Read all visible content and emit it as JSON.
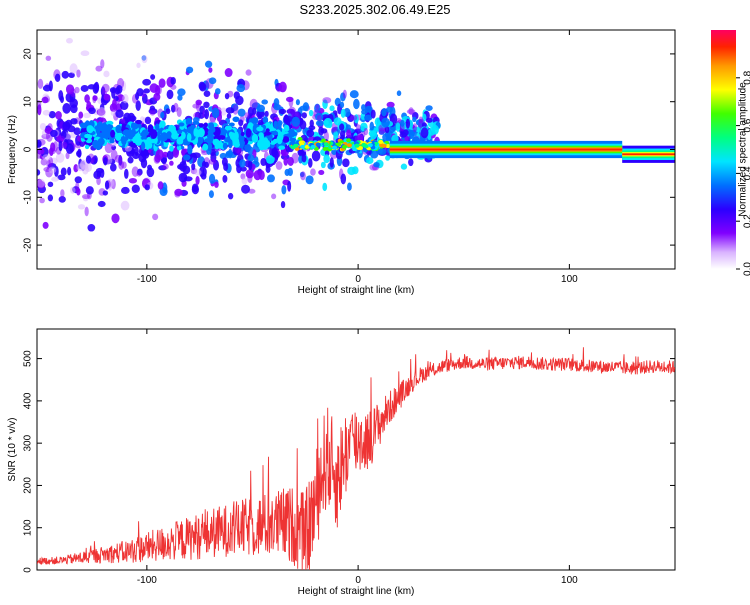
{
  "title": "S233.2025.302.06.49.E25",
  "chart_data": [
    {
      "type": "heatmap",
      "xlabel": "Height of straight line (km)",
      "ylabel": "Frequency (Hz)",
      "xlim": [
        -152,
        150
      ],
      "ylim": [
        -25,
        25
      ],
      "xticks": [
        -100,
        0,
        100
      ],
      "xtick_labels": [
        "-100",
        "0",
        "100"
      ],
      "yticks": [
        -20,
        -10,
        0,
        10,
        20
      ],
      "ytick_labels": [
        "-20",
        "-10",
        "0",
        "10",
        "20"
      ],
      "colorbar": {
        "label": "Normalized spectral amplitude",
        "range": [
          0,
          1
        ],
        "ticks": [
          0.0,
          0.2,
          0.4,
          0.6,
          0.8
        ],
        "tick_labels": [
          "0.0",
          "0.2",
          "0.4",
          "0.6",
          "0.8"
        ],
        "colormap": "rainbow"
      },
      "features": [
        {
          "x_range": [
            -152,
            -30
          ],
          "center_freq": 3,
          "spread_hz": 8,
          "amplitude": 0.2,
          "note": "broad noisy scatter"
        },
        {
          "x_range": [
            -30,
            15
          ],
          "center_freq": 1,
          "spread_hz": 2,
          "amplitude": 0.45,
          "note": "narrowing signal"
        },
        {
          "x_range": [
            15,
            125
          ],
          "center_freq": 0,
          "spread_hz": 1,
          "amplitude": 0.9,
          "note": "strong narrow line"
        },
        {
          "x_range": [
            125,
            150
          ],
          "center_freq": -1,
          "spread_hz": 1,
          "amplitude": 0.8,
          "note": "slight frequency drop"
        }
      ]
    },
    {
      "type": "line",
      "xlabel": "Height of straight line (km)",
      "ylabel": "SNR (10 * v/v)",
      "xlim": [
        -152,
        150
      ],
      "ylim": [
        0,
        570
      ],
      "xticks": [
        -100,
        0,
        100
      ],
      "xtick_labels": [
        "-100",
        "0",
        "100"
      ],
      "yticks": [
        0,
        100,
        200,
        300,
        400,
        500
      ],
      "ytick_labels": [
        "0",
        "100",
        "200",
        "300",
        "400",
        "500"
      ],
      "series": [
        {
          "name": "SNR",
          "color": "#ee3333",
          "x": [
            -152,
            -140,
            -130,
            -120,
            -110,
            -100,
            -90,
            -80,
            -70,
            -60,
            -50,
            -40,
            -35,
            -30,
            -25,
            -20,
            -15,
            -10,
            -5,
            0,
            5,
            10,
            15,
            20,
            25,
            30,
            35,
            40,
            50,
            60,
            70,
            80,
            90,
            100,
            110,
            120,
            130,
            140,
            150
          ],
          "y": [
            20,
            22,
            28,
            35,
            40,
            50,
            60,
            70,
            80,
            90,
            95,
            100,
            100,
            95,
            60,
            150,
            260,
            200,
            280,
            300,
            300,
            340,
            380,
            410,
            440,
            460,
            470,
            480,
            490,
            485,
            488,
            490,
            485,
            485,
            480,
            478,
            475,
            480,
            478
          ],
          "noise": [
            10,
            12,
            20,
            25,
            35,
            45,
            55,
            65,
            75,
            80,
            90,
            100,
            110,
            120,
            140,
            150,
            160,
            150,
            130,
            110,
            90,
            70,
            50,
            40,
            30,
            25,
            20,
            20,
            20,
            20,
            20,
            20,
            20,
            20,
            20,
            20,
            20,
            20,
            20
          ]
        }
      ]
    }
  ]
}
